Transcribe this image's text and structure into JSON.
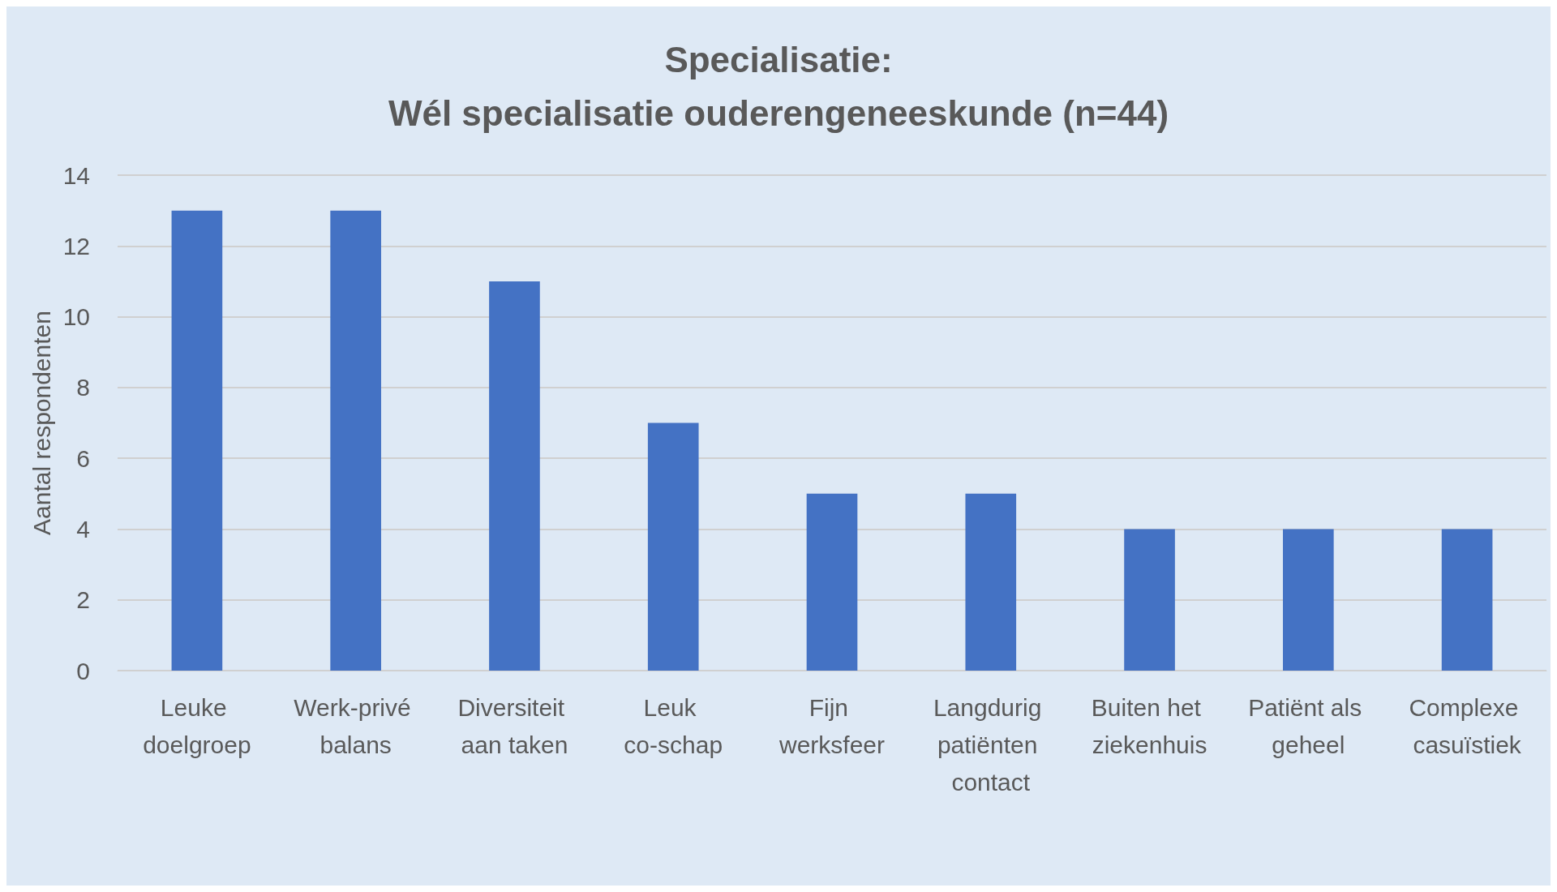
{
  "chart_data": {
    "type": "bar",
    "title": "Specialisatie:",
    "subtitle": "Wél specialisatie ouderengeneeskunde (n=44)",
    "ylabel": "Aantal respondenten",
    "categories": [
      "Leuke doelgroep",
      "Werk-privé balans",
      "Diversiteit aan taken",
      "Leuk co-schap",
      "Fijn werksfeer",
      "Langdurig patiënten contact",
      "Buiten het ziekenhuis",
      "Patiënt als geheel",
      "Complexe casuïstiek"
    ],
    "values": [
      13,
      13,
      11,
      7,
      5,
      5,
      4,
      4,
      4
    ],
    "color": "#4472c4",
    "ylim": [
      0,
      14
    ],
    "yticks": [
      0,
      2,
      4,
      6,
      8,
      10,
      12,
      14
    ],
    "grid": "y"
  }
}
